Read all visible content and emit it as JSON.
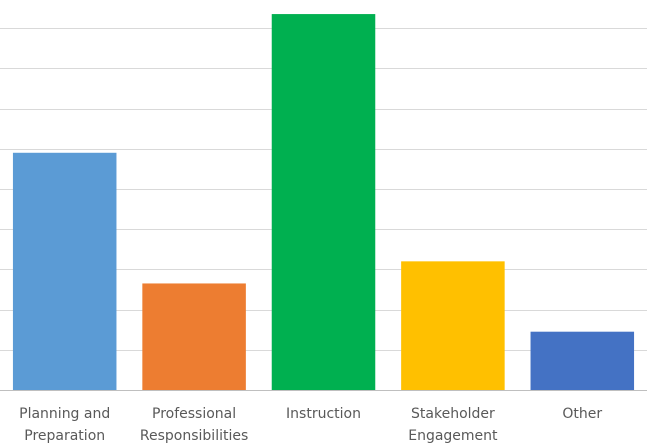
{
  "chart_data": {
    "type": "bar",
    "title": "",
    "xlabel": "",
    "ylabel": "",
    "categories": [
      [
        "Planning and",
        "Preparation"
      ],
      [
        "Professional",
        "Responsibilities"
      ],
      [
        "Instruction"
      ],
      [
        "Stakeholder",
        "Engagement"
      ],
      [
        "Other"
      ]
    ],
    "values": [
      5.9,
      2.65,
      9.35,
      3.2,
      1.45
    ],
    "colors": [
      "#5b9bd5",
      "#ed7d31",
      "#00b050",
      "#ffc000",
      "#4472c4"
    ],
    "ylim": [
      0,
      9.7
    ],
    "grid": true,
    "gridline_values": [
      1,
      2,
      3,
      4,
      5,
      6,
      7,
      8,
      9
    ],
    "legend": "none"
  }
}
